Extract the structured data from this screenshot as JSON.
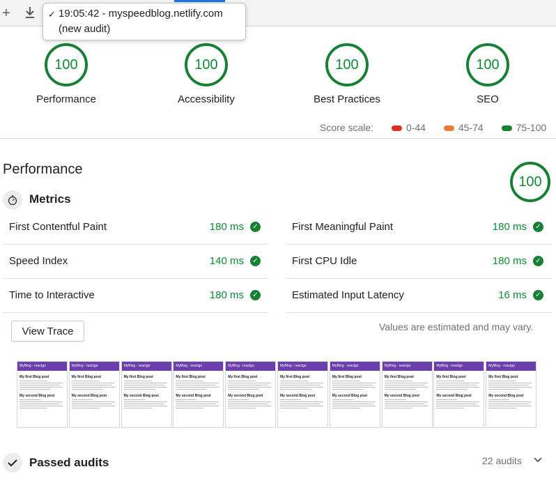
{
  "toolbar": {
    "add_icon": "plus-icon",
    "download_icon": "download-icon",
    "dropdown": {
      "check_glyph": "✓",
      "line1": "19:05:42 - myspeedblog.netlify.com",
      "line2": "(new audit)"
    }
  },
  "gauges": [
    {
      "score": "100",
      "label": "Performance"
    },
    {
      "score": "100",
      "label": "Accessibility"
    },
    {
      "score": "100",
      "label": "Best Practices"
    },
    {
      "score": "100",
      "label": "SEO"
    }
  ],
  "score_scale": {
    "label": "Score scale:",
    "ranges": [
      {
        "text": "0-44",
        "color": "#d93025"
      },
      {
        "text": "45-74",
        "color": "#e67c39"
      },
      {
        "text": "75-100",
        "color": "#188034"
      }
    ]
  },
  "performance": {
    "title": "Performance",
    "score": "100",
    "metrics_title": "Metrics",
    "metrics": [
      {
        "name": "First Contentful Paint",
        "value": "180 ms"
      },
      {
        "name": "First Meaningful Paint",
        "value": "180 ms"
      },
      {
        "name": "Speed Index",
        "value": "140 ms"
      },
      {
        "name": "First CPU Idle",
        "value": "180 ms"
      },
      {
        "name": "Time to Interactive",
        "value": "180 ms"
      },
      {
        "name": "Estimated Input Latency",
        "value": "16 ms"
      }
    ],
    "view_trace_label": "View Trace",
    "values_note": "Values are estimated and may vary.",
    "filmstrip": {
      "frame_header": "MyBlog - reactgo",
      "post1_title": "My first Blog post",
      "post2_title": "My second Blog post",
      "frame_count": 10
    }
  },
  "passed_audits": {
    "title": "Passed audits",
    "count": "22 audits"
  },
  "colors": {
    "pass_green": "#188034",
    "pass_text": "#0d8a36",
    "brand_purple": "#6a3eab"
  }
}
